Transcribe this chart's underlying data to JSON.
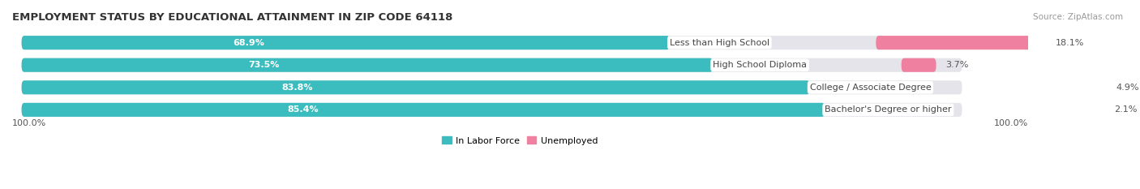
{
  "title": "EMPLOYMENT STATUS BY EDUCATIONAL ATTAINMENT IN ZIP CODE 64118",
  "source": "Source: ZipAtlas.com",
  "categories": [
    "Less than High School",
    "High School Diploma",
    "College / Associate Degree",
    "Bachelor's Degree or higher"
  ],
  "in_labor_force": [
    68.9,
    73.5,
    83.8,
    85.4
  ],
  "unemployed": [
    18.1,
    3.7,
    4.9,
    2.1
  ],
  "color_labor": "#3bbcbe",
  "color_unemployed": "#f080a0",
  "color_bar_bg": "#e4e4ea",
  "bar_height": 0.62,
  "legend_labor": "In Labor Force",
  "legend_unemployed": "Unemployed",
  "left_label": "100.0%",
  "right_label": "100.0%",
  "title_fontsize": 9.5,
  "source_fontsize": 7.5,
  "tick_label_fontsize": 8,
  "bar_pct_fontsize": 8,
  "category_fontsize": 8
}
